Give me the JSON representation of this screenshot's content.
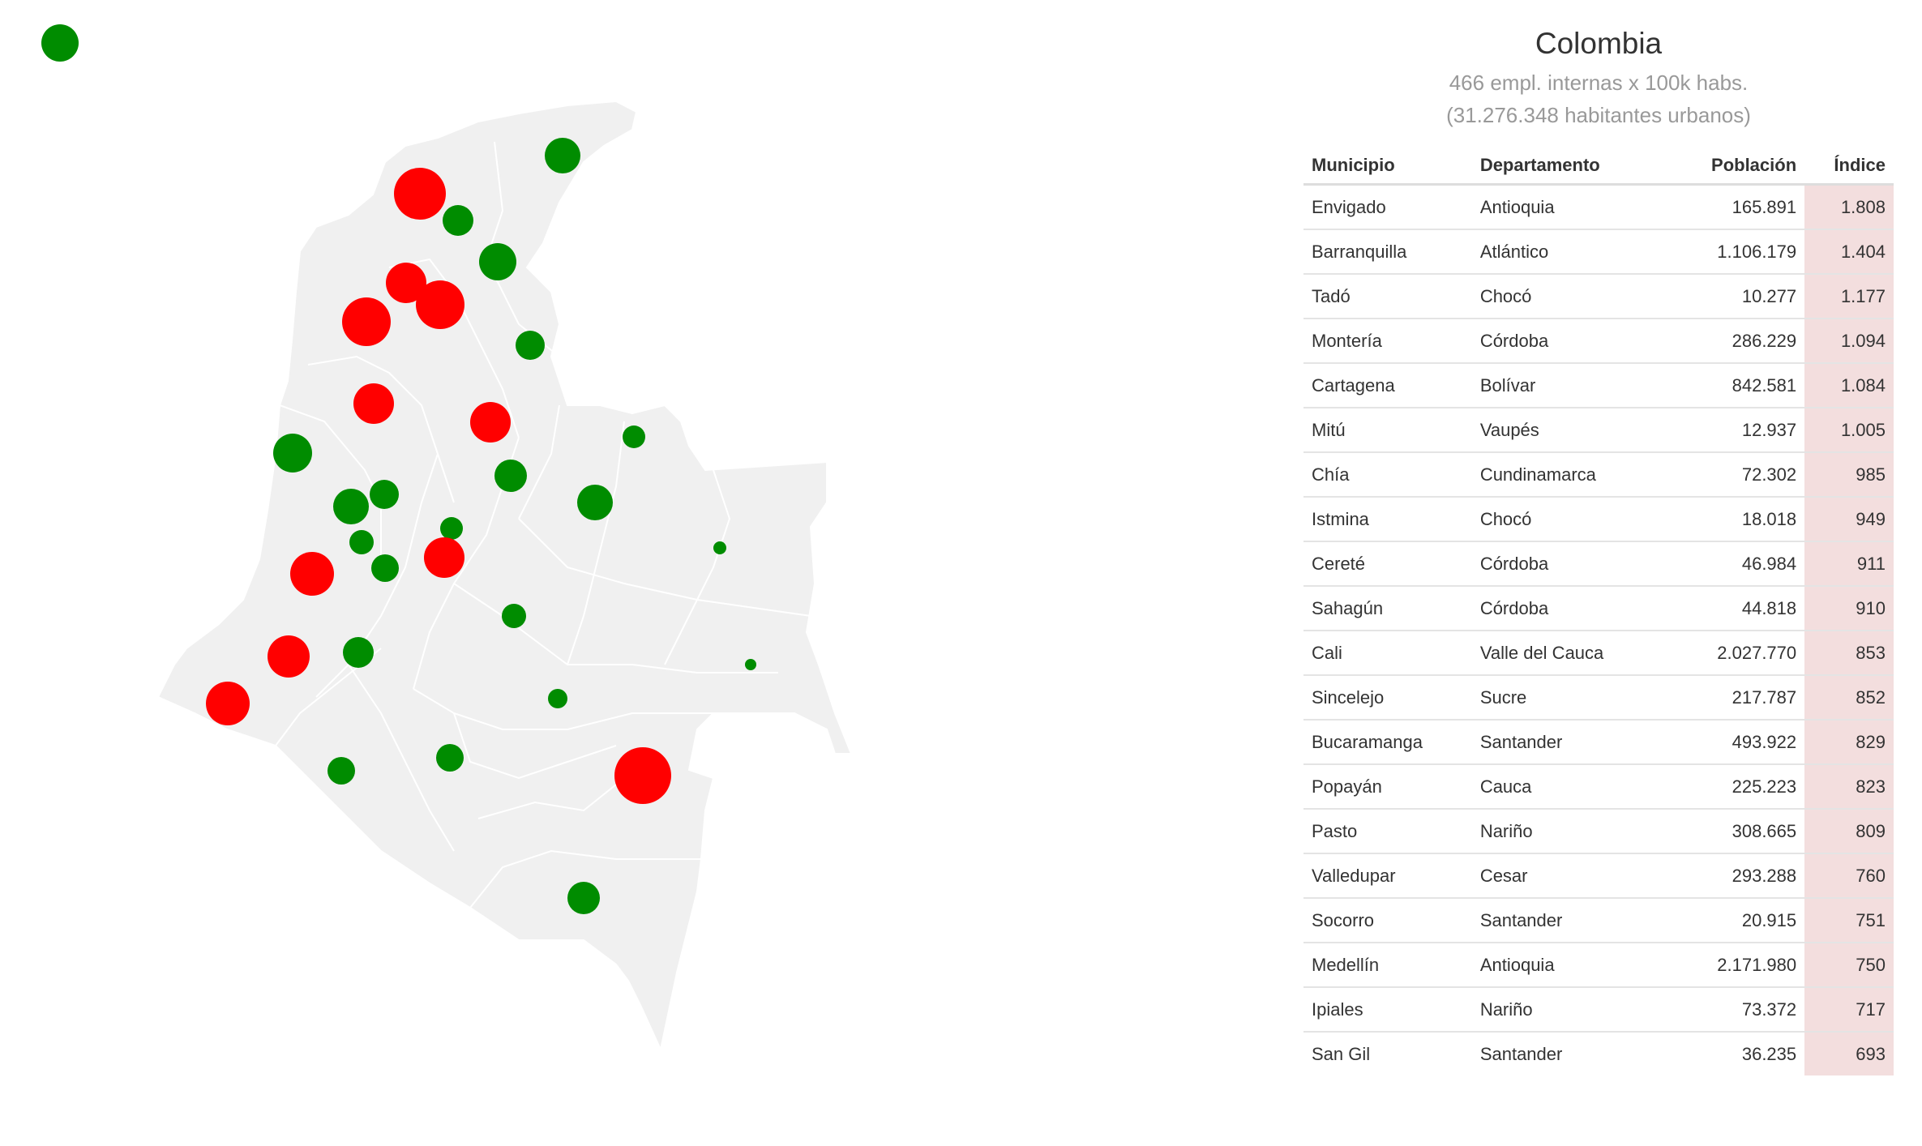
{
  "colors": {
    "high": "#ff0000",
    "low": "#008c00",
    "land": "#f0f0f0",
    "border": "#ffffff",
    "index_bg": "#f3dede"
  },
  "legend": {
    "icon": "green-circle"
  },
  "summary": {
    "title": "Colombia",
    "line1": "466 empl. internas x 100k habs.",
    "line2": "(31.276.348 habitantes urbanos)"
  },
  "table": {
    "headers": [
      "Municipio",
      "Departamento",
      "Población",
      "Índice"
    ],
    "rows": [
      [
        "Envigado",
        "Antioquia",
        "165.891",
        "1.808"
      ],
      [
        "Barranquilla",
        "Atlántico",
        "1.106.179",
        "1.404"
      ],
      [
        "Tadó",
        "Chocó",
        "10.277",
        "1.177"
      ],
      [
        "Montería",
        "Córdoba",
        "286.229",
        "1.094"
      ],
      [
        "Cartagena",
        "Bolívar",
        "842.581",
        "1.084"
      ],
      [
        "Mitú",
        "Vaupés",
        "12.937",
        "1.005"
      ],
      [
        "Chía",
        "Cundinamarca",
        "72.302",
        "985"
      ],
      [
        "Istmina",
        "Chocó",
        "18.018",
        "949"
      ],
      [
        "Cereté",
        "Córdoba",
        "46.984",
        "911"
      ],
      [
        "Sahagún",
        "Córdoba",
        "44.818",
        "910"
      ],
      [
        "Cali",
        "Valle del Cauca",
        "2.027.770",
        "853"
      ],
      [
        "Sincelejo",
        "Sucre",
        "217.787",
        "852"
      ],
      [
        "Bucaramanga",
        "Santander",
        "493.922",
        "829"
      ],
      [
        "Popayán",
        "Cauca",
        "225.223",
        "823"
      ],
      [
        "Pasto",
        "Nariño",
        "308.665",
        "809"
      ],
      [
        "Valledupar",
        "Cesar",
        "293.288",
        "760"
      ],
      [
        "Socorro",
        "Santander",
        "20.915",
        "751"
      ],
      [
        "Medellín",
        "Antioquia",
        "2.171.980",
        "750"
      ],
      [
        "Ipiales",
        "Nariño",
        "73.372",
        "717"
      ],
      [
        "San Gil",
        "Santander",
        "36.235",
        "693"
      ]
    ]
  }
}
